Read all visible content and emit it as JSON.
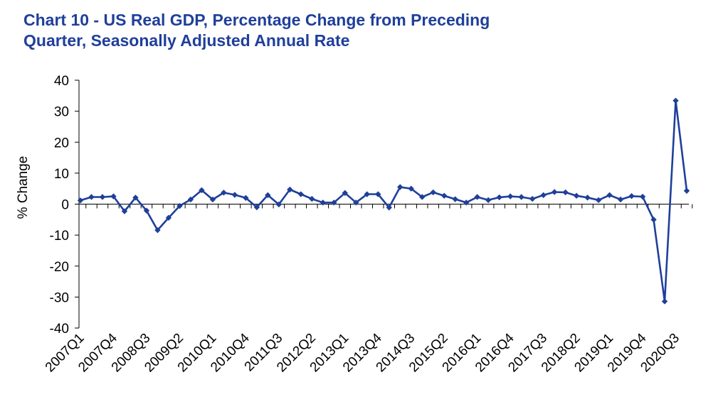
{
  "chart_data": {
    "type": "line",
    "title_line1": "Chart 10 - US Real GDP, Percentage Change from Preceding",
    "title_line2": "Quarter, Seasonally Adjusted  Annual  Rate",
    "xlabel": "",
    "ylabel": "% Change",
    "ylim": [
      -40,
      40
    ],
    "yticks": [
      40,
      30,
      20,
      10,
      0,
      -10,
      -20,
      -30,
      -40
    ],
    "grid": false,
    "legend": "none",
    "line_color": "#1f3f9a",
    "x_tick_labels": [
      "2007Q1",
      "2007Q4",
      "2008Q3",
      "2009Q2",
      "2010Q1",
      "2010Q4",
      "2011Q3",
      "2012Q2",
      "2013Q1",
      "2013Q4",
      "2014Q3",
      "2015Q2",
      "2016Q1",
      "2016Q4",
      "2017Q3",
      "2018Q2",
      "2019Q1",
      "2019Q4",
      "2020Q3"
    ],
    "categories": [
      "2007Q1",
      "2007Q2",
      "2007Q3",
      "2007Q4",
      "2008Q1",
      "2008Q2",
      "2008Q3",
      "2008Q4",
      "2009Q1",
      "2009Q2",
      "2009Q3",
      "2009Q4",
      "2010Q1",
      "2010Q2",
      "2010Q3",
      "2010Q4",
      "2011Q1",
      "2011Q2",
      "2011Q3",
      "2011Q4",
      "2012Q1",
      "2012Q2",
      "2012Q3",
      "2012Q4",
      "2013Q1",
      "2013Q2",
      "2013Q3",
      "2013Q4",
      "2014Q1",
      "2014Q2",
      "2014Q3",
      "2014Q4",
      "2015Q1",
      "2015Q2",
      "2015Q3",
      "2015Q4",
      "2016Q1",
      "2016Q2",
      "2016Q3",
      "2016Q4",
      "2017Q1",
      "2017Q2",
      "2017Q3",
      "2017Q4",
      "2018Q1",
      "2018Q2",
      "2018Q3",
      "2018Q4",
      "2019Q1",
      "2019Q2",
      "2019Q3",
      "2019Q4",
      "2020Q1",
      "2020Q2",
      "2020Q3",
      "2020Q4"
    ],
    "values": [
      1.2,
      2.3,
      2.3,
      2.5,
      -2.3,
      2.1,
      -2.1,
      -8.4,
      -4.4,
      -0.6,
      1.5,
      4.5,
      1.5,
      3.7,
      3.0,
      2.0,
      -1.0,
      2.9,
      -0.1,
      4.7,
      3.2,
      1.7,
      0.5,
      0.5,
      3.6,
      0.5,
      3.2,
      3.2,
      -1.1,
      5.5,
      5.0,
      2.3,
      3.8,
      2.7,
      1.6,
      0.5,
      2.3,
      1.3,
      2.2,
      2.5,
      2.3,
      1.7,
      2.9,
      3.9,
      3.8,
      2.7,
      2.1,
      1.3,
      2.9,
      1.5,
      2.6,
      2.4,
      -5.0,
      -31.4,
      33.4,
      4.3
    ]
  }
}
